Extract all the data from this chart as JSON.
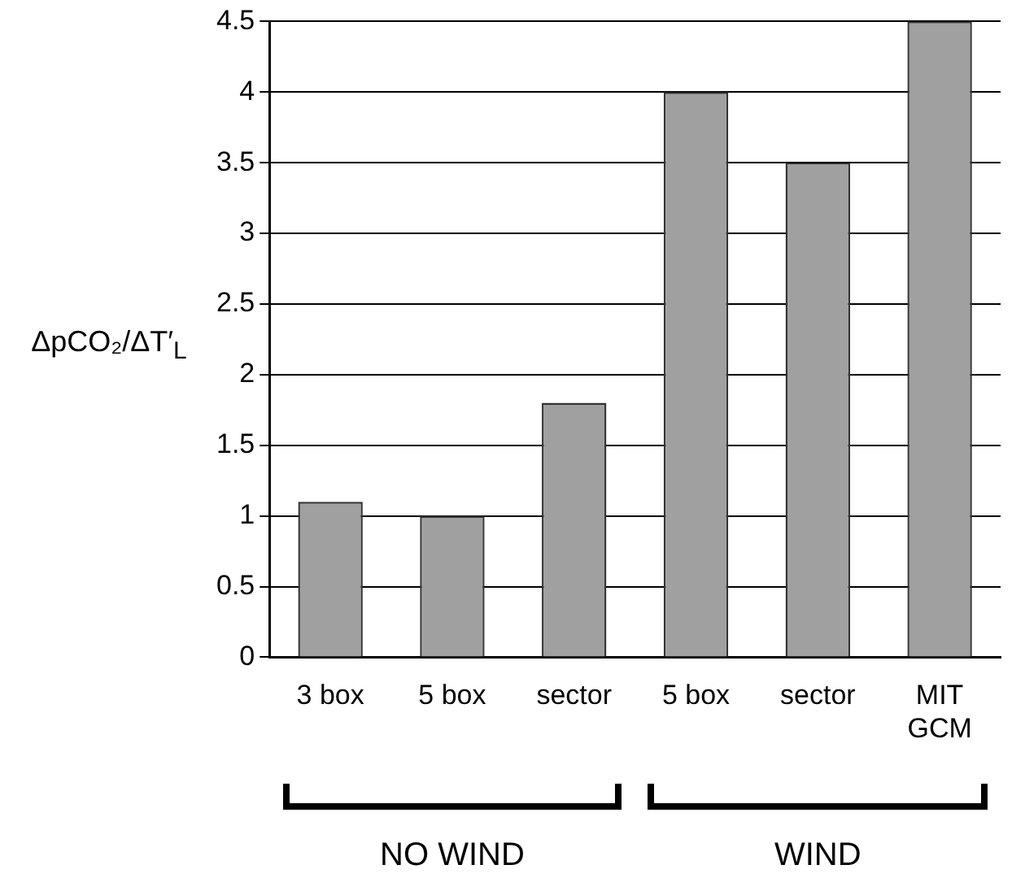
{
  "chart_data": {
    "type": "bar",
    "ylabel": "ΔpCO₂/ΔT′$_{L}$",
    "categories": [
      "3 box",
      "5 box",
      "sector",
      "5 box",
      "sector",
      "MIT\nGCM"
    ],
    "values": [
      1.1,
      1.0,
      1.8,
      4.0,
      3.5,
      4.5
    ],
    "color": "#a0a0a0",
    "ylim": [
      0,
      4.5
    ],
    "yticks": [
      0,
      0.5,
      1,
      1.5,
      2,
      2.5,
      3,
      3.5,
      4,
      4.5
    ],
    "grid": "y",
    "annotations": [
      "NO WIND",
      "WIND"
    ]
  }
}
